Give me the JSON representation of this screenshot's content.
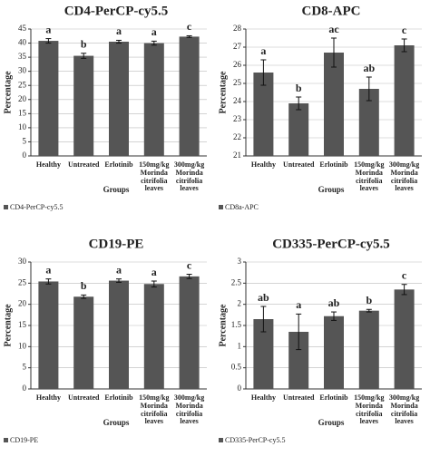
{
  "chart_data": [
    {
      "type": "bar",
      "title": "CD4-PerCP-cy5.5",
      "y_label": "Percentage",
      "x_label": "Groups",
      "categories": [
        "Healthy",
        "Untreated",
        "Erlotinib",
        "150mg/kg Morinda citrifolia leaves",
        "300mg/kg Morinda citrifolia leaves"
      ],
      "series": [
        {
          "name": "CD4-PerCP-cy5.5",
          "color": "#555555",
          "values": [
            40.8,
            35.5,
            40.5,
            40,
            42.3
          ],
          "errors": [
            0.8,
            0.9,
            0.5,
            0.7,
            0.3
          ]
        }
      ],
      "letters": [
        "a",
        "b",
        "a",
        "a",
        "c"
      ],
      "ylim": [
        0,
        45
      ],
      "yticks": [
        0,
        5,
        10,
        15,
        20,
        25,
        30,
        35,
        40,
        45
      ],
      "grid": true
    },
    {
      "type": "bar",
      "title": "CD8-APC",
      "y_label": "Percentage",
      "x_label": "Groups",
      "categories": [
        "Healthy",
        "Untreated",
        "Erlotinib",
        "150mg/kg Morinda citrifolia leaves",
        "300mg/kg Morinda citrifolia leaves"
      ],
      "series": [
        {
          "name": "CD8a-APC",
          "color": "#555555",
          "values": [
            25.6,
            23.9,
            26.7,
            24.7,
            27.1
          ],
          "errors": [
            0.7,
            0.35,
            0.8,
            0.65,
            0.35
          ]
        }
      ],
      "letters": [
        "a",
        "b",
        "ac",
        "ab",
        "c"
      ],
      "ylim": [
        21,
        28
      ],
      "yticks": [
        21,
        22,
        23,
        24,
        25,
        26,
        27,
        28
      ],
      "grid": true
    },
    {
      "type": "bar",
      "title": "CD19-PE",
      "y_label": "Percentage",
      "x_label": "Groups",
      "categories": [
        "Healthy",
        "Untreated",
        "Erlotinib",
        "150mg/kg Morinda citrifolia leaves",
        "300mg/kg Morinda citrifolia leaves"
      ],
      "series": [
        {
          "name": "CD19-PE",
          "color": "#555555",
          "values": [
            25.4,
            21.8,
            25.6,
            24.8,
            26.6
          ],
          "errors": [
            0.6,
            0.4,
            0.4,
            0.7,
            0.5
          ]
        }
      ],
      "letters": [
        "a",
        "b",
        "a",
        "a",
        "c"
      ],
      "ylim": [
        0,
        30
      ],
      "yticks": [
        0,
        5,
        10,
        15,
        20,
        25,
        30
      ],
      "grid": true
    },
    {
      "type": "bar",
      "title": "CD335-PerCP-cy5.5",
      "y_label": "Percentage",
      "x_label": "Groups",
      "categories": [
        "Healthy",
        "Untreated",
        "Erlotinib",
        "150mg/kg Morinda citrifolia leaves",
        "300mg/kg Morinda citrifolia leaves"
      ],
      "series": [
        {
          "name": "CD335-PerCP-cy5.5",
          "color": "#555555",
          "values": [
            1.65,
            1.35,
            1.72,
            1.85,
            2.35
          ],
          "errors": [
            0.3,
            0.42,
            0.1,
            0.03,
            0.12
          ]
        }
      ],
      "letters": [
        "ab",
        "a",
        "ab",
        "b",
        "c"
      ],
      "ylim": [
        0,
        3
      ],
      "yticks": [
        0,
        0.5,
        1,
        1.5,
        2,
        2.5,
        3
      ],
      "grid": true
    }
  ]
}
